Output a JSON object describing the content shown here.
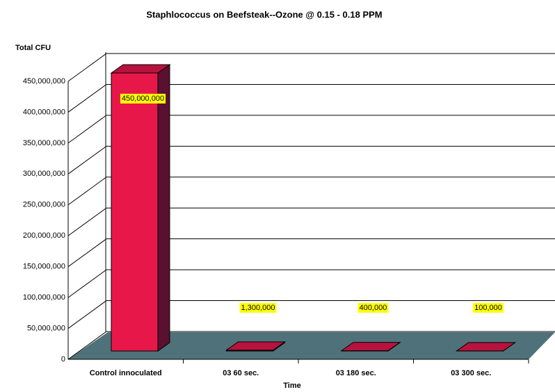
{
  "chart_data": {
    "type": "bar3d",
    "title": "Staphlococcus on Beefsteak--Ozone @ 0.15 - 0.18 PPM",
    "y_label": "Total CFU",
    "x_label": "Time",
    "categories": [
      "Control innoculated",
      "03 60 sec.",
      "03 180 sec.",
      "03 300 sec."
    ],
    "values": [
      450000000,
      1300000,
      400000,
      100000
    ],
    "value_labels": [
      "450,000,000",
      "1,300,000",
      "400,000",
      "100,000"
    ],
    "color": "#e8174a",
    "ylim": [
      0,
      450000000
    ],
    "yticks": [
      0,
      {
        "value": 50000000,
        "label": "50,000,000"
      },
      {
        "value": 100000000,
        "label": "100,000,000"
      },
      {
        "value": 150000000,
        "label": "150,000,000"
      },
      {
        "value": 200000000,
        "label": "200,000,000"
      },
      {
        "value": 250000000,
        "label": "250,000,000"
      },
      {
        "value": 300000000,
        "label": "300,000,000"
      },
      {
        "value": 350000000,
        "label": "350,000,000"
      },
      {
        "value": 400000000,
        "label": "400,000,000"
      },
      {
        "value": 450000000,
        "label": "450,000,000"
      }
    ],
    "grid": true
  }
}
